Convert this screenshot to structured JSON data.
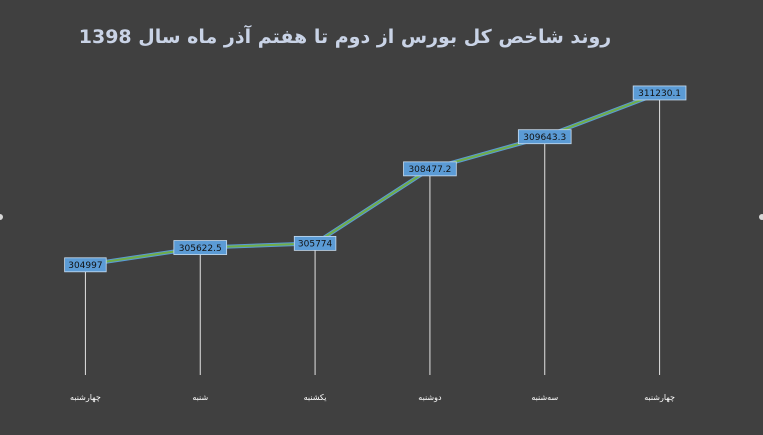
{
  "chart_data": {
    "type": "line",
    "title": "روند شاخص کل بورس از دوم تا هفتم آذر ماه سال 1398",
    "categories": [
      "چهارشنبه",
      "شنبه",
      "یکشنبه",
      "دوشنبه",
      "سه‌شنبه",
      "چهارشنبه"
    ],
    "series": [
      {
        "values": [
          304997,
          305622.5,
          305774,
          308477.2,
          309643.3,
          311230.1
        ]
      }
    ],
    "value_labels": [
      "304997",
      "305622.5",
      "305774",
      "308477.2",
      "309643.3",
      "311230.1"
    ],
    "ylim": [
      301000,
      311700
    ],
    "grid": false,
    "legend": "none",
    "drop_lines": true,
    "colors": {
      "background": "#404040",
      "line_outer": "#5a9bd5",
      "line_inner": "#70ad47",
      "label_box": "#5b9bd5",
      "title": "#c9d3e6",
      "drop_line": "#ffffff"
    }
  }
}
